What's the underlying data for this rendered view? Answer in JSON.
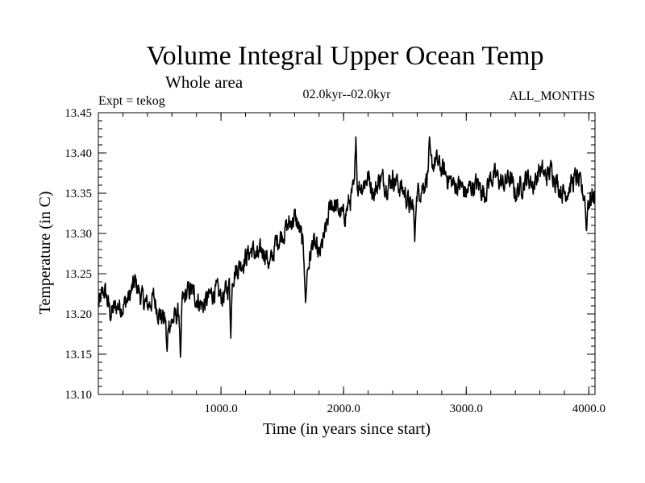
{
  "chart_data": {
    "type": "line",
    "title": "Volume Integral Upper Ocean Temp",
    "subtitle": "Whole area",
    "experiment_label": "Expt = tekog",
    "period_label": "02.0kyr--02.0kyr",
    "months_label": "ALL_MONTHS",
    "xlabel": "Time (in years since start)",
    "ylabel": "Temperature (in C)",
    "xlim": [
      0,
      4050
    ],
    "ylim": [
      13.1,
      13.45
    ],
    "x_ticks": [
      1000,
      2000,
      3000,
      4000
    ],
    "x_tick_labels": [
      "1000.0",
      "2000.0",
      "3000.0",
      "4000.0"
    ],
    "y_ticks": [
      13.1,
      13.15,
      13.2,
      13.25,
      13.3,
      13.35,
      13.4,
      13.45
    ],
    "y_tick_labels": [
      "13.10",
      "13.15",
      "13.20",
      "13.25",
      "13.30",
      "13.35",
      "13.40",
      "13.45"
    ],
    "grid": false,
    "series": [
      {
        "name": "Temperature",
        "color": "#000000",
        "points": [
          [
            0,
            13.21
          ],
          [
            50,
            13.23
          ],
          [
            100,
            13.2
          ],
          [
            150,
            13.21
          ],
          [
            200,
            13.21
          ],
          [
            250,
            13.22
          ],
          [
            300,
            13.24
          ],
          [
            350,
            13.22
          ],
          [
            400,
            13.21
          ],
          [
            450,
            13.22
          ],
          [
            500,
            13.2
          ],
          [
            550,
            13.19
          ],
          [
            600,
            13.19
          ],
          [
            650,
            13.2
          ],
          [
            700,
            13.22
          ],
          [
            750,
            13.23
          ],
          [
            800,
            13.22
          ],
          [
            850,
            13.21
          ],
          [
            900,
            13.22
          ],
          [
            950,
            13.23
          ],
          [
            1000,
            13.22
          ],
          [
            1050,
            13.23
          ],
          [
            1100,
            13.25
          ],
          [
            1150,
            13.26
          ],
          [
            1200,
            13.27
          ],
          [
            1250,
            13.28
          ],
          [
            1300,
            13.27
          ],
          [
            1350,
            13.28
          ],
          [
            1400,
            13.26
          ],
          [
            1450,
            13.29
          ],
          [
            1500,
            13.3
          ],
          [
            1550,
            13.31
          ],
          [
            1600,
            13.32
          ],
          [
            1650,
            13.3
          ],
          [
            1700,
            13.25
          ],
          [
            1750,
            13.29
          ],
          [
            1800,
            13.27
          ],
          [
            1850,
            13.3
          ],
          [
            1900,
            13.34
          ],
          [
            1950,
            13.33
          ],
          [
            2000,
            13.32
          ],
          [
            2050,
            13.34
          ],
          [
            2100,
            13.36
          ],
          [
            2150,
            13.36
          ],
          [
            2200,
            13.37
          ],
          [
            2250,
            13.35
          ],
          [
            2300,
            13.37
          ],
          [
            2350,
            13.36
          ],
          [
            2400,
            13.37
          ],
          [
            2450,
            13.36
          ],
          [
            2500,
            13.35
          ],
          [
            2550,
            13.33
          ],
          [
            2600,
            13.35
          ],
          [
            2650,
            13.36
          ],
          [
            2700,
            13.38
          ],
          [
            2750,
            13.39
          ],
          [
            2800,
            13.38
          ],
          [
            2850,
            13.37
          ],
          [
            2900,
            13.36
          ],
          [
            2950,
            13.36
          ],
          [
            3000,
            13.35
          ],
          [
            3050,
            13.36
          ],
          [
            3100,
            13.36
          ],
          [
            3150,
            13.35
          ],
          [
            3200,
            13.37
          ],
          [
            3250,
            13.37
          ],
          [
            3300,
            13.36
          ],
          [
            3350,
            13.37
          ],
          [
            3400,
            13.35
          ],
          [
            3450,
            13.36
          ],
          [
            3500,
            13.37
          ],
          [
            3550,
            13.36
          ],
          [
            3600,
            13.38
          ],
          [
            3650,
            13.37
          ],
          [
            3700,
            13.38
          ],
          [
            3750,
            13.36
          ],
          [
            3800,
            13.35
          ],
          [
            3850,
            13.36
          ],
          [
            3900,
            13.37
          ],
          [
            3950,
            13.35
          ],
          [
            4000,
            13.34
          ],
          [
            4050,
            13.35
          ]
        ],
        "extremes": [
          [
            670,
            13.14
          ],
          [
            560,
            13.15
          ],
          [
            1080,
            13.17
          ],
          [
            1690,
            13.21
          ],
          [
            2580,
            13.29
          ],
          [
            2700,
            13.42
          ],
          [
            2100,
            13.42
          ],
          [
            3980,
            13.3
          ]
        ]
      }
    ]
  }
}
